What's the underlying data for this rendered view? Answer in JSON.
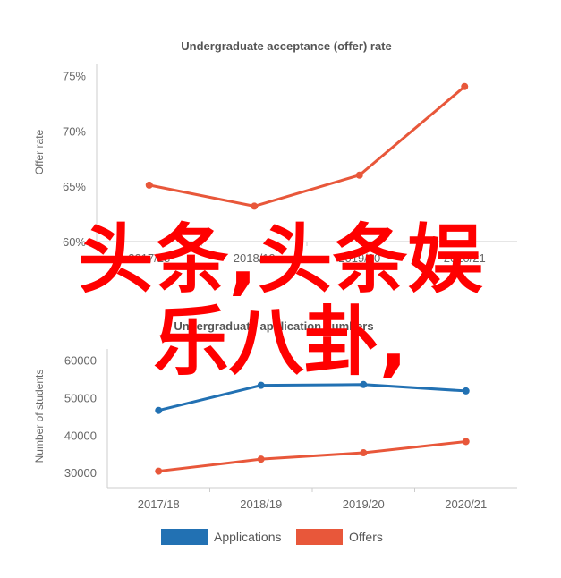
{
  "chart_data": [
    {
      "type": "line",
      "title": "Undergraduate acceptance (offer) rate",
      "categories": [
        "2017/18",
        "2018/19",
        "2019/20",
        "2020/21"
      ],
      "ylabel": "Offer rate",
      "yticks": [
        "60%",
        "65%",
        "70%",
        "75%"
      ],
      "ylim": [
        60,
        76
      ],
      "series": [
        {
          "values": [
            65.1,
            63.2,
            66.0,
            74.0
          ],
          "color": "#e8573a"
        }
      ]
    },
    {
      "type": "line",
      "title": "Undergraduate application numbers",
      "categories": [
        "2017/18",
        "2018/19",
        "2019/20",
        "2020/21"
      ],
      "ylabel": "Number of students",
      "yticks": [
        "30000",
        "40000",
        "50000",
        "60000"
      ],
      "ylim": [
        26000,
        63000
      ],
      "series": [
        {
          "name": "Applications",
          "values": [
            46600,
            53300,
            53500,
            51800
          ],
          "color": "#2271b3"
        },
        {
          "name": "Offers",
          "values": [
            30400,
            33600,
            35300,
            38300
          ],
          "color": "#e8573a"
        }
      ],
      "legend": "bottom"
    }
  ],
  "overlay": {
    "line1": "头条,头条娱",
    "line2": "乐八卦,"
  }
}
